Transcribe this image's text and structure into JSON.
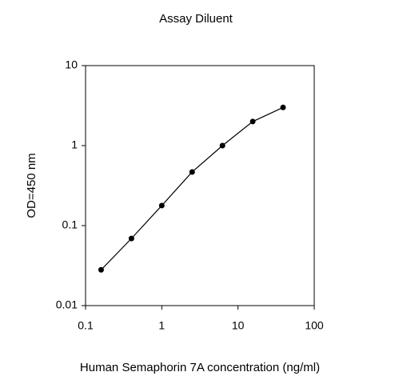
{
  "chart_data": {
    "type": "line",
    "title": "Assay Diluent",
    "x_label": "Human Semaphorin 7A concentration (ng/ml)",
    "y_label": "OD=450 nm",
    "series": [
      {
        "name": "Assay Diluent",
        "color": "#000000",
        "x": [
          0.16,
          0.4,
          1,
          2.5,
          6.25,
          15.6,
          39
        ],
        "values": [
          0.028,
          0.069,
          0.178,
          0.468,
          1.0,
          2.0,
          3.0
        ]
      }
    ],
    "xlim": [
      0.1,
      100
    ],
    "ylim": [
      0.01,
      10
    ],
    "xticks": [
      0.1,
      1,
      10,
      100
    ],
    "yticks": [
      0.01,
      0.1,
      1,
      10
    ],
    "xscale": "log",
    "yscale": "log",
    "markers": true,
    "grid": false
  }
}
